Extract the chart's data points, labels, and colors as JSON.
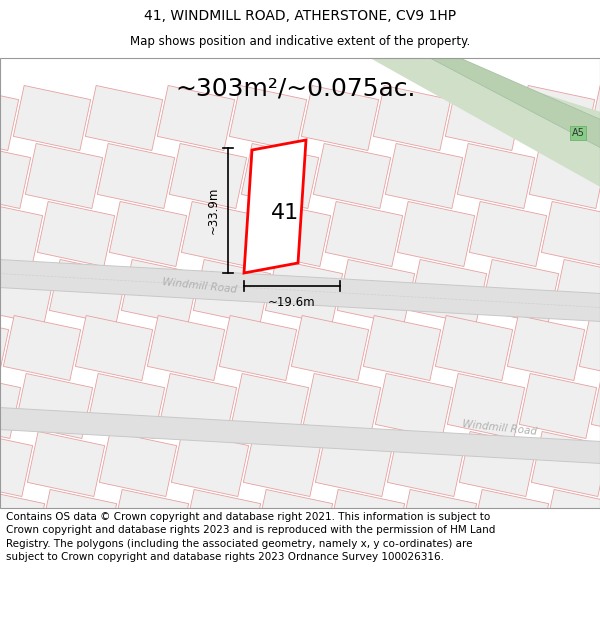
{
  "title": "41, WINDMILL ROAD, ATHERSTONE, CV9 1HP",
  "subtitle": "Map shows position and indicative extent of the property.",
  "area_text": "~303m²/~0.075ac.",
  "label_41": "41",
  "dim_height": "~33.9m",
  "dim_width": "~19.6m",
  "road_label1": "Windmill Road",
  "road_label2": "Windmill Road",
  "a5_label": "A5",
  "footer_text": "Contains OS data © Crown copyright and database right 2021. This information is subject to Crown copyright and database rights 2023 and is reproduced with the permission of HM Land Registry. The polygons (including the associated geometry, namely x, y co-ordinates) are subject to Crown copyright and database rights 2023 Ordnance Survey 100026316.",
  "title_fontsize": 10,
  "subtitle_fontsize": 8.5,
  "area_fontsize": 18,
  "footer_fontsize": 7.5
}
